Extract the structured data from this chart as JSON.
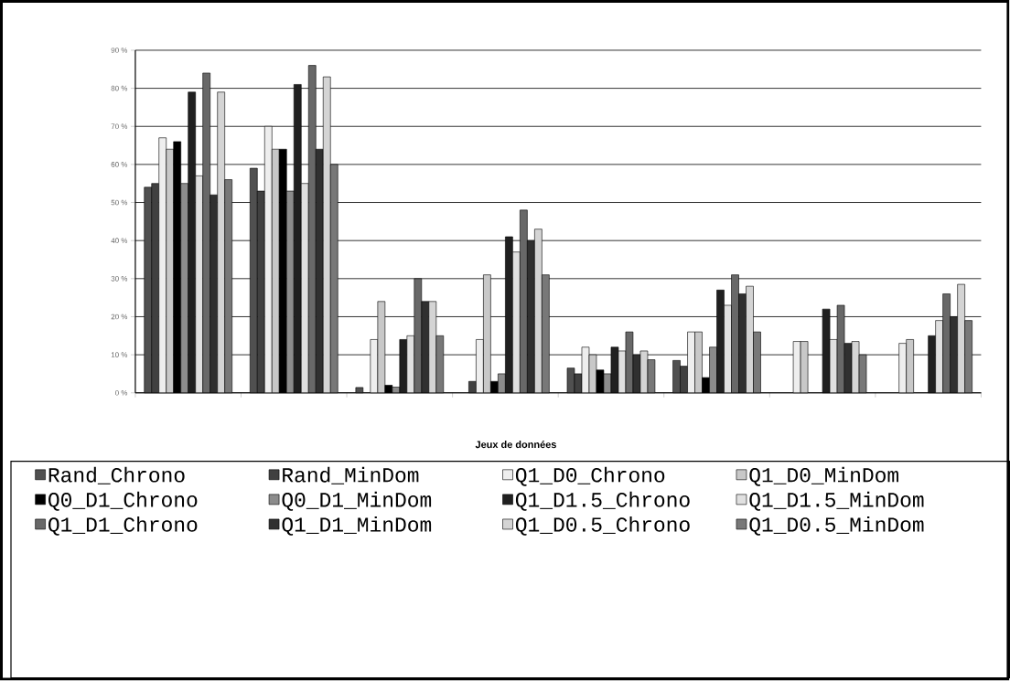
{
  "chart_data": {
    "type": "bar",
    "xlabel": "Jeux de données",
    "categories": [
      null,
      null,
      null,
      null,
      null,
      null,
      null,
      null
    ],
    "ylim": [
      0,
      90
    ],
    "yticks": [
      {
        "value": 0,
        "label": "0 %"
      },
      {
        "value": 10,
        "label": "10 %"
      },
      {
        "value": 20,
        "label": "20 %"
      },
      {
        "value": 30,
        "label": "30 %"
      },
      {
        "value": 40,
        "label": "40 %"
      },
      {
        "value": 50,
        "label": "50 %"
      },
      {
        "value": 60,
        "label": "60 %"
      },
      {
        "value": 70,
        "label": "70 %"
      },
      {
        "value": 80,
        "label": "80 %"
      },
      {
        "value": 90,
        "label": "90 %"
      }
    ],
    "grid": "y",
    "legend": "bottom",
    "series": [
      {
        "name": "Rand_Chrono",
        "color": "#505050",
        "values": [
          54,
          59,
          1.4,
          null,
          6.5,
          8.5,
          null,
          null
        ]
      },
      {
        "name": "Rand_MinDom",
        "color": "#404040",
        "values": [
          55,
          53,
          null,
          3,
          5,
          7,
          null,
          null
        ]
      },
      {
        "name": "Q1_D0_Chrono",
        "color": "#eeeeee",
        "values": [
          67,
          70,
          14,
          14,
          12,
          16,
          13.5,
          13
        ]
      },
      {
        "name": "Q1_D0_MinDom",
        "color": "#c8c8c8",
        "values": [
          64,
          64,
          24,
          31,
          10,
          16,
          13.5,
          14
        ]
      },
      {
        "name": "Q0_D1_Chrono",
        "color": "#000000",
        "values": [
          66,
          64,
          2,
          3,
          6,
          4,
          null,
          null
        ]
      },
      {
        "name": "Q0_D1_MinDom",
        "color": "#8c8c8c",
        "values": [
          55,
          53,
          1.5,
          5,
          5,
          12,
          null,
          null
        ]
      },
      {
        "name": "Q1_D1.5_Chrono",
        "color": "#202020",
        "values": [
          79,
          81,
          14,
          41,
          12,
          27,
          22,
          15
        ]
      },
      {
        "name": "Q1_D1.5_MinDom",
        "color": "#e0e0e0",
        "values": [
          57,
          55,
          15,
          37,
          11,
          23,
          14,
          19
        ]
      },
      {
        "name": "Q1_D1_Chrono",
        "color": "#686868",
        "values": [
          84,
          86,
          30,
          48,
          16,
          31,
          23,
          26
        ]
      },
      {
        "name": "Q1_D1_MinDom",
        "color": "#303030",
        "values": [
          52,
          64,
          24,
          40,
          10,
          26,
          13,
          20
        ]
      },
      {
        "name": "Q1_D0.5_Chrono",
        "color": "#d4d4d4",
        "values": [
          79,
          83,
          24,
          43,
          11,
          28,
          13.5,
          28.5
        ]
      },
      {
        "name": "Q1_D0.5_MinDom",
        "color": "#787878",
        "values": [
          56,
          60,
          15,
          31,
          8.7,
          16,
          10,
          19
        ]
      }
    ]
  }
}
